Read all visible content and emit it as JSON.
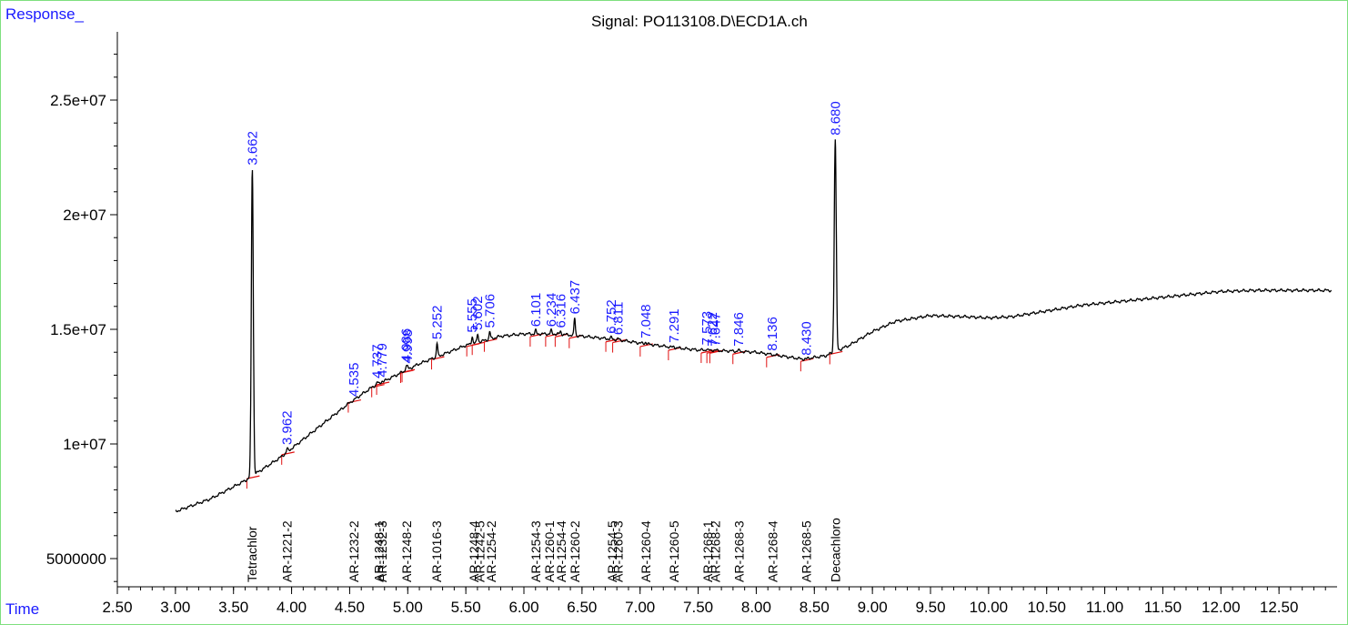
{
  "chart_data": {
    "type": "line",
    "title": "Signal: PO113108.D\\ECD1A.ch",
    "ylabel": "Response_",
    "xlabel": "Time",
    "xlim": [
      2.5,
      13.0
    ],
    "ylim": [
      4000000,
      28000000
    ],
    "x_ticks": [
      "2.50",
      "3.00",
      "3.50",
      "4.00",
      "4.50",
      "5.00",
      "5.50",
      "6.00",
      "6.50",
      "7.00",
      "7.50",
      "8.00",
      "8.50",
      "9.00",
      "9.50",
      "10.00",
      "10.50",
      "11.00",
      "11.50",
      "12.00",
      "12.50"
    ],
    "y_ticks": [
      {
        "v": 5000000,
        "label": "5000000"
      },
      {
        "v": 10000000,
        "label": "1e+07"
      },
      {
        "v": 15000000,
        "label": "1.5e+07"
      },
      {
        "v": 20000000,
        "label": "2e+07"
      },
      {
        "v": 25000000,
        "label": "2.5e+07"
      }
    ],
    "baseline": [
      [
        3.0,
        7050000
      ],
      [
        3.3,
        7600000
      ],
      [
        3.6,
        8400000
      ],
      [
        3.9,
        9400000
      ],
      [
        4.1,
        10200000
      ],
      [
        4.3,
        11000000
      ],
      [
        4.5,
        11800000
      ],
      [
        4.7,
        12500000
      ],
      [
        4.9,
        13000000
      ],
      [
        5.1,
        13500000
      ],
      [
        5.3,
        13900000
      ],
      [
        5.5,
        14300000
      ],
      [
        5.8,
        14700000
      ],
      [
        6.0,
        14800000
      ],
      [
        6.3,
        14800000
      ],
      [
        6.5,
        14700000
      ],
      [
        6.8,
        14550000
      ],
      [
        7.0,
        14400000
      ],
      [
        7.3,
        14200000
      ],
      [
        7.5,
        14100000
      ],
      [
        7.8,
        14050000
      ],
      [
        8.0,
        14000000
      ],
      [
        8.2,
        13850000
      ],
      [
        8.4,
        13700000
      ],
      [
        8.6,
        13850000
      ],
      [
        8.8,
        14300000
      ],
      [
        9.0,
        14900000
      ],
      [
        9.2,
        15350000
      ],
      [
        9.5,
        15600000
      ],
      [
        9.8,
        15550000
      ],
      [
        10.0,
        15500000
      ],
      [
        10.2,
        15550000
      ],
      [
        10.5,
        15800000
      ],
      [
        10.8,
        16050000
      ],
      [
        11.1,
        16200000
      ],
      [
        11.4,
        16350000
      ],
      [
        11.7,
        16500000
      ],
      [
        12.0,
        16650000
      ],
      [
        12.3,
        16700000
      ],
      [
        12.6,
        16700000
      ],
      [
        12.95,
        16700000
      ]
    ],
    "peaks": [
      {
        "rt": 3.662,
        "height": 22000000,
        "label": "3.662",
        "compound": "Tetrachlor"
      },
      {
        "rt": 3.962,
        "height": 9800000,
        "label": "3.962",
        "compound": "AR-1221-2"
      },
      {
        "rt": 4.535,
        "height": 11900000,
        "label": "4.535",
        "compound": "AR-1232-2"
      },
      {
        "rt": 4.737,
        "height": 12700000,
        "label": "4.737",
        "compound": "AR-1248-1"
      },
      {
        "rt": 4.779,
        "height": 12750000,
        "label": "4.779",
        "compound": "AR-1232-3"
      },
      {
        "rt": 4.986,
        "height": 13400000,
        "label": "4.986",
        "compound": "AR-1248-2"
      },
      {
        "rt": 4.998,
        "height": 13350000,
        "label": "4.998",
        "compound": "AR-1232-4"
      },
      {
        "rt": 5.252,
        "height": 14400000,
        "label": "5.252",
        "compound": "AR-1016-3"
      },
      {
        "rt": 5.555,
        "height": 14700000,
        "label": "5.555",
        "compound": "AR-1248-4"
      },
      {
        "rt": 5.602,
        "height": 14800000,
        "label": "5.602",
        "compound": "AR-1242-5"
      },
      {
        "rt": 5.706,
        "height": 14900000,
        "label": "5.706",
        "compound": "AR-1254-2"
      },
      {
        "rt": 6.101,
        "height": 14950000,
        "label": "6.101",
        "compound": "AR-1254-3"
      },
      {
        "rt": 6.234,
        "height": 14950000,
        "label": "6.234",
        "compound": "AR-1260-1"
      },
      {
        "rt": 6.316,
        "height": 14900000,
        "label": "6.316",
        "compound": "AR-1254-4"
      },
      {
        "rt": 6.437,
        "height": 15500000,
        "label": "6.437",
        "compound": "AR-1260-2"
      },
      {
        "rt": 6.752,
        "height": 14650000,
        "label": "6.752",
        "compound": "AR-1254-5"
      },
      {
        "rt": 6.811,
        "height": 14600000,
        "label": "6.811",
        "compound": "AR-1260-3"
      },
      {
        "rt": 7.048,
        "height": 14450000,
        "label": "7.048",
        "compound": "AR-1260-4"
      },
      {
        "rt": 7.291,
        "height": 14250000,
        "label": "7.291",
        "compound": "AR-1260-5"
      },
      {
        "rt": 7.573,
        "height": 14150000,
        "label": "7.573",
        "compound": "AR-1268-1"
      },
      {
        "rt": 7.622,
        "height": 14100000,
        "label": "7.622",
        "compound": "AR-1268-2"
      },
      {
        "rt": 7.647,
        "height": 14100000,
        "label": "7.647",
        "compound": "AR-1268-2"
      },
      {
        "rt": 7.846,
        "height": 14100000,
        "label": "7.846",
        "compound": "AR-1268-3"
      },
      {
        "rt": 8.136,
        "height": 13900000,
        "label": "8.136",
        "compound": "AR-1268-4"
      },
      {
        "rt": 8.43,
        "height": 13700000,
        "label": "8.430",
        "compound": "AR-1268-5"
      },
      {
        "rt": 8.68,
        "height": 23300000,
        "label": "8.680",
        "compound": "Decachloro"
      }
    ],
    "compound_markers": [
      {
        "rt": 3.66,
        "label": "Tetrachlor"
      },
      {
        "rt": 3.962,
        "label": "AR-1221-2"
      },
      {
        "rt": 4.535,
        "label": "AR-1232-2"
      },
      {
        "rt": 4.75,
        "label": "AR-1248-1"
      },
      {
        "rt": 4.78,
        "label": "AR-1232-3"
      },
      {
        "rt": 4.99,
        "label": "AR-1248-2"
      },
      {
        "rt": 5.25,
        "label": "AR-1016-3"
      },
      {
        "rt": 5.57,
        "label": "AR-1248-4"
      },
      {
        "rt": 5.62,
        "label": "AR-1242-5"
      },
      {
        "rt": 5.72,
        "label": "AR-1254-2"
      },
      {
        "rt": 6.1,
        "label": "AR-1254-3"
      },
      {
        "rt": 6.22,
        "label": "AR-1260-1"
      },
      {
        "rt": 6.32,
        "label": "AR-1254-4"
      },
      {
        "rt": 6.44,
        "label": "AR-1260-2"
      },
      {
        "rt": 6.76,
        "label": "AR-1254-5"
      },
      {
        "rt": 6.81,
        "label": "AR-1260-3"
      },
      {
        "rt": 7.05,
        "label": "AR-1260-4"
      },
      {
        "rt": 7.29,
        "label": "AR-1260-5"
      },
      {
        "rt": 7.58,
        "label": "AR-1268-1"
      },
      {
        "rt": 7.65,
        "label": "AR-1268-2"
      },
      {
        "rt": 7.85,
        "label": "AR-1268-3"
      },
      {
        "rt": 8.14,
        "label": "AR-1268-4"
      },
      {
        "rt": 8.43,
        "label": "AR-1268-5"
      },
      {
        "rt": 8.68,
        "label": "Decachloro"
      }
    ],
    "colors": {
      "trace": "#000000",
      "peak_label": "#1a1aff",
      "integration": "#e01010",
      "frame": "#7ee07e"
    }
  }
}
